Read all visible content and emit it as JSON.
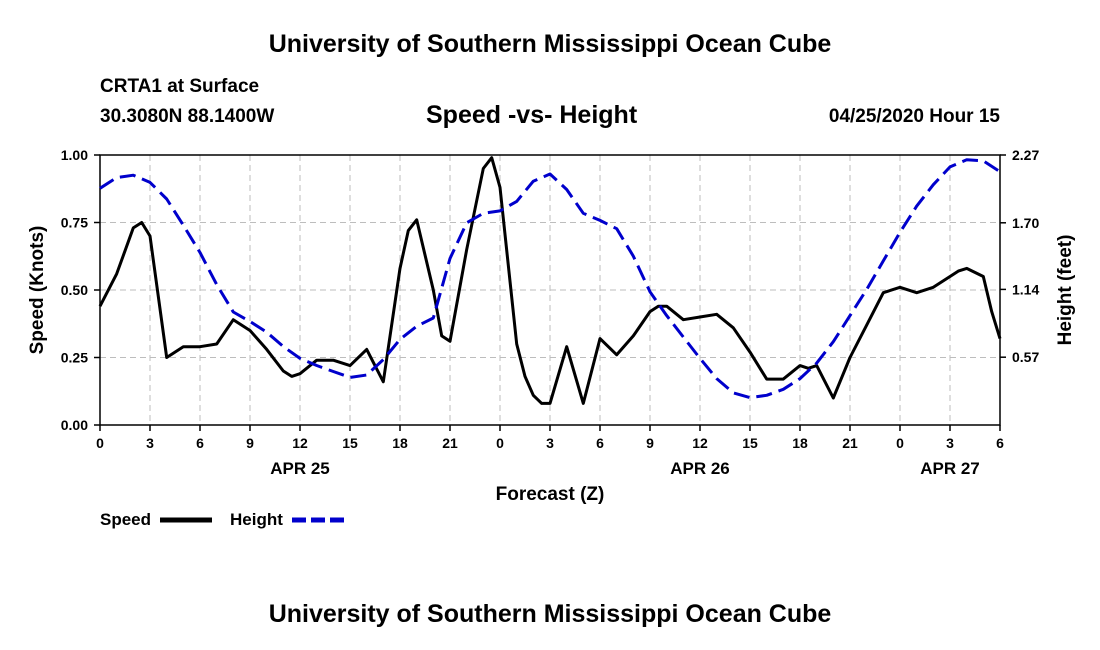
{
  "header": {
    "title": "University of Southern Mississippi Ocean Cube",
    "station": "CRTA1 at Surface",
    "coords": "30.3080N 88.1400W",
    "datetime": "04/25/2020 Hour 15"
  },
  "footer": {
    "title": "University of Southern Mississippi Ocean Cube"
  },
  "chart_data": {
    "type": "line",
    "title": "Speed -vs- Height",
    "xlabel": "Forecast (Z)",
    "ylabel_left": "Speed (Knots)",
    "ylabel_right": "Height (feet)",
    "xlim": [
      0,
      54
    ],
    "ylim_left": [
      0,
      1
    ],
    "ylim_right": [
      0,
      2.27
    ],
    "grid": true,
    "x_ticks": [
      0,
      3,
      6,
      9,
      12,
      15,
      18,
      21,
      24,
      27,
      30,
      33,
      36,
      39,
      42,
      45,
      48,
      51,
      54
    ],
    "x_tick_labels": [
      "0",
      "3",
      "6",
      "9",
      "12",
      "15",
      "18",
      "21",
      "0",
      "3",
      "6",
      "9",
      "12",
      "15",
      "18",
      "21",
      "0",
      "3",
      "6"
    ],
    "date_labels": [
      {
        "x": 12,
        "label": "APR 25"
      },
      {
        "x": 36,
        "label": "APR 26"
      },
      {
        "x": 51,
        "label": "APR 27"
      }
    ],
    "y_left_ticks": [
      0,
      0.25,
      0.5,
      0.75,
      1.0
    ],
    "y_left_tick_labels": [
      "0.00",
      "0.25",
      "0.50",
      "0.75",
      "1.00"
    ],
    "y_right_ticks": [
      0.57,
      1.14,
      1.7,
      2.27
    ],
    "y_right_tick_labels": [
      "0.57",
      "1.14",
      "1.70",
      "2.27"
    ],
    "legend": {
      "position": "bottom-left",
      "entries": [
        "Speed",
        "Height"
      ]
    },
    "series": [
      {
        "name": "Speed",
        "axis": "left",
        "color": "#000000",
        "style": "solid",
        "x": [
          0,
          1,
          2,
          2.5,
          3,
          4,
          5,
          6,
          7,
          8,
          9,
          10,
          11,
          11.5,
          12,
          13,
          14,
          15,
          16,
          17,
          18,
          18.5,
          19,
          20,
          20.5,
          21,
          22,
          23,
          23.5,
          24,
          25,
          25.5,
          26,
          26.5,
          27,
          28,
          29,
          30,
          31,
          32,
          33,
          33.5,
          34,
          35,
          36,
          37,
          38,
          39,
          40,
          41,
          42,
          42.5,
          43,
          44,
          45,
          46,
          47,
          48,
          49,
          50,
          51,
          51.5,
          52,
          53,
          53.5,
          54
        ],
        "values": [
          0.44,
          0.56,
          0.73,
          0.75,
          0.7,
          0.25,
          0.29,
          0.29,
          0.3,
          0.39,
          0.35,
          0.28,
          0.2,
          0.18,
          0.19,
          0.24,
          0.24,
          0.22,
          0.28,
          0.16,
          0.58,
          0.72,
          0.76,
          0.5,
          0.33,
          0.31,
          0.65,
          0.95,
          0.99,
          0.88,
          0.3,
          0.18,
          0.11,
          0.08,
          0.08,
          0.29,
          0.08,
          0.32,
          0.26,
          0.33,
          0.42,
          0.44,
          0.44,
          0.39,
          0.4,
          0.41,
          0.36,
          0.27,
          0.17,
          0.17,
          0.22,
          0.21,
          0.22,
          0.1,
          0.25,
          0.37,
          0.49,
          0.51,
          0.49,
          0.51,
          0.55,
          0.57,
          0.58,
          0.55,
          0.42,
          0.32
        ]
      },
      {
        "name": "Height",
        "axis": "right",
        "color": "#0000cc",
        "style": "dashed",
        "x": [
          0,
          1,
          2,
          3,
          4,
          5,
          6,
          7,
          8,
          9,
          10,
          11,
          12,
          13,
          14,
          15,
          16,
          17,
          18,
          19,
          20,
          21,
          22,
          23,
          24,
          25,
          26,
          27,
          28,
          29,
          30,
          31,
          32,
          33,
          34,
          35,
          36,
          37,
          38,
          39,
          40,
          41,
          42,
          43,
          44,
          45,
          46,
          47,
          48,
          49,
          50,
          51,
          52,
          53,
          54
        ],
        "values": [
          1.99,
          2.08,
          2.1,
          2.04,
          1.9,
          1.68,
          1.45,
          1.18,
          0.95,
          0.87,
          0.78,
          0.66,
          0.56,
          0.5,
          0.45,
          0.4,
          0.42,
          0.55,
          0.72,
          0.83,
          0.9,
          1.4,
          1.7,
          1.78,
          1.8,
          1.88,
          2.05,
          2.11,
          1.98,
          1.78,
          1.72,
          1.65,
          1.42,
          1.12,
          0.92,
          0.74,
          0.56,
          0.39,
          0.27,
          0.23,
          0.25,
          0.3,
          0.39,
          0.52,
          0.7,
          0.92,
          1.14,
          1.38,
          1.62,
          1.84,
          2.02,
          2.17,
          2.23,
          2.22,
          2.13
        ]
      }
    ]
  }
}
